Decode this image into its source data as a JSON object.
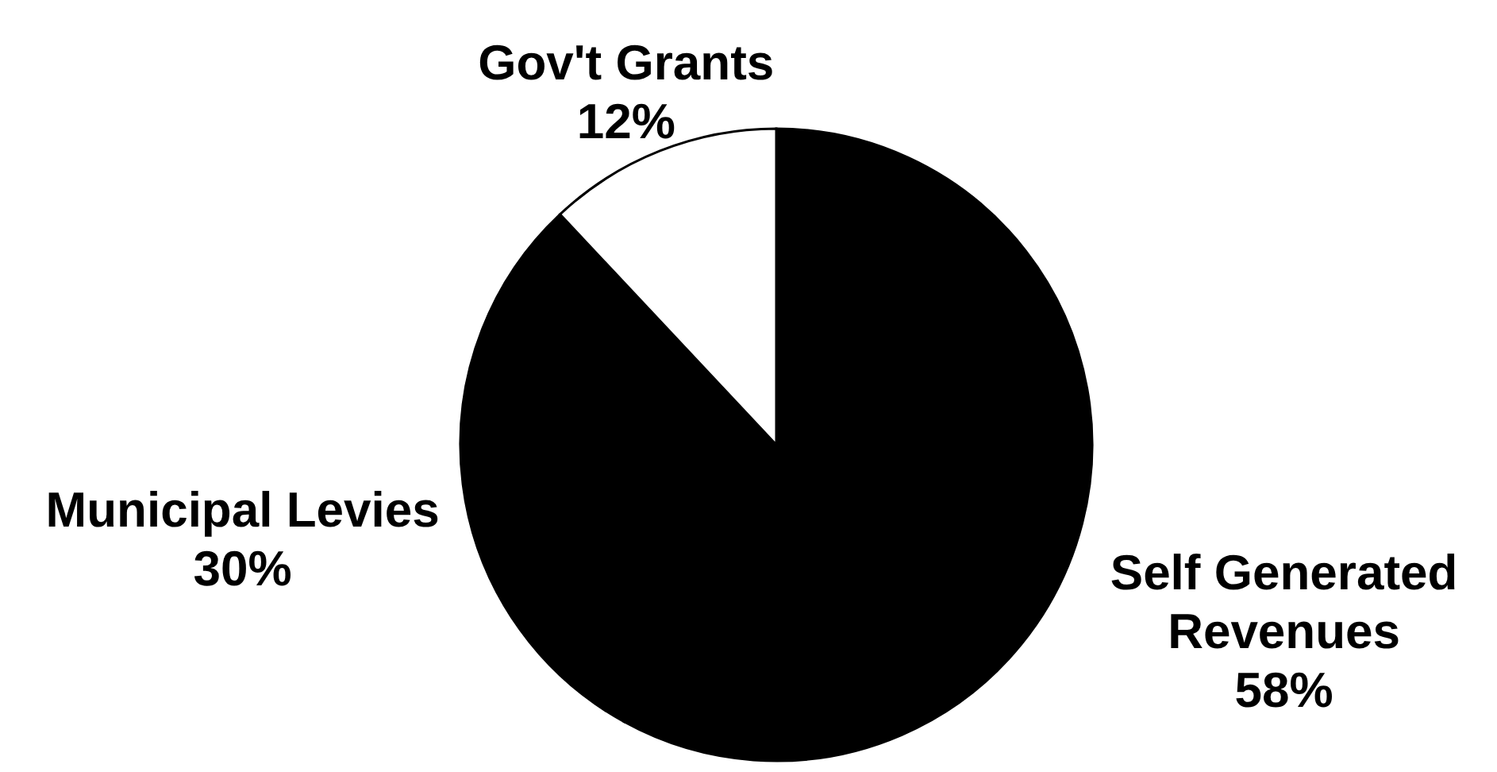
{
  "chart_data": {
    "type": "pie",
    "categories": [
      "Self Generated Revenues",
      "Municipal Levies",
      "Gov't Grants"
    ],
    "values": [
      58,
      30,
      12
    ],
    "colors": [
      "#000000",
      "#000000",
      "#ffffff"
    ],
    "value_labels": [
      "58%",
      "30%",
      "12%"
    ]
  }
}
